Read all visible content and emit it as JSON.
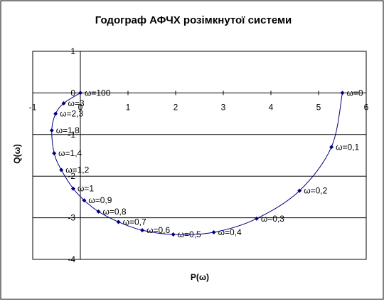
{
  "chart_data": {
    "type": "scatter",
    "title": "Годограф АФЧХ розімкнутої системи",
    "xlabel": "P(ω)",
    "ylabel": "Q(ω)",
    "xlim": [
      -1,
      6
    ],
    "ylim": [
      -4,
      1
    ],
    "x_ticks": [
      "-1",
      "0",
      "1",
      "2",
      "3",
      "4",
      "5",
      "6"
    ],
    "y_ticks": [
      "1",
      "0",
      "-1",
      "-2",
      "-3",
      "-4"
    ],
    "grid": true,
    "series": [
      {
        "color": "#000080",
        "points": [
          {
            "x": 5.5,
            "y": 0.0,
            "label": "ω=0"
          },
          {
            "x": 5.27,
            "y": -1.3,
            "label": "ω=0,1"
          },
          {
            "x": 4.6,
            "y": -2.35,
            "label": "ω=0,2"
          },
          {
            "x": 3.7,
            "y": -3.02,
            "label": "ω=0,3"
          },
          {
            "x": 2.8,
            "y": -3.35,
            "label": "ω=0,4"
          },
          {
            "x": 1.95,
            "y": -3.4,
            "label": "ω=0,5"
          },
          {
            "x": 1.3,
            "y": -3.3,
            "label": "ω=0,6"
          },
          {
            "x": 0.8,
            "y": -3.1,
            "label": "ω=0,7"
          },
          {
            "x": 0.38,
            "y": -2.85,
            "label": "ω=0,8"
          },
          {
            "x": 0.08,
            "y": -2.58,
            "label": "ω=0,9"
          },
          {
            "x": -0.15,
            "y": -2.3,
            "label": "ω=1"
          },
          {
            "x": -0.4,
            "y": -1.85,
            "label": "ω=1,2"
          },
          {
            "x": -0.55,
            "y": -1.45,
            "label": "ω=1,4"
          },
          {
            "x": -0.6,
            "y": -0.9,
            "label": "ω=1,8"
          },
          {
            "x": -0.52,
            "y": -0.5,
            "label": "ω=2,3"
          },
          {
            "x": -0.35,
            "y": -0.25,
            "label": "ω=3"
          },
          {
            "x": 0.0,
            "y": 0.0,
            "label": "ω=100"
          }
        ]
      }
    ]
  }
}
